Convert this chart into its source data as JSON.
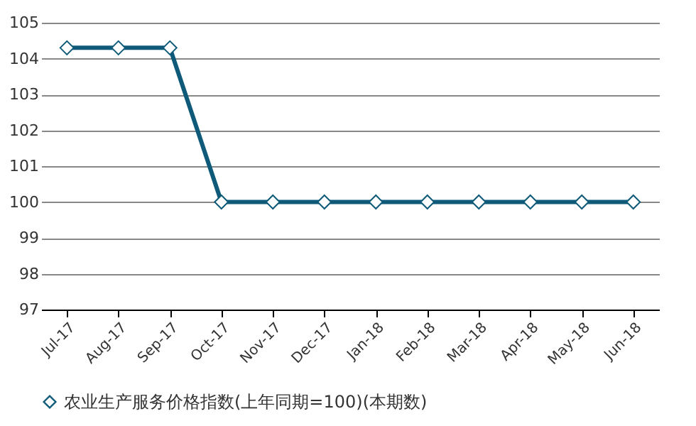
{
  "chart_data": {
    "type": "line",
    "categories": [
      "Jul-17",
      "Aug-17",
      "Sep-17",
      "Oct-17",
      "Nov-17",
      "Dec-17",
      "Jan-18",
      "Feb-18",
      "Mar-18",
      "Apr-18",
      "May-18",
      "Jun-18"
    ],
    "series": [
      {
        "name": "农业生产服务价格指数(上年同期=100)(本期数)",
        "color": "#0e5a78",
        "values": [
          104.3,
          104.3,
          104.3,
          100,
          100,
          100,
          100,
          100,
          100,
          100,
          100,
          100
        ]
      }
    ],
    "ylim": [
      97,
      105
    ],
    "yticks": [
      97,
      98,
      99,
      100,
      101,
      102,
      103,
      104,
      105
    ],
    "grid": "y",
    "legend": "bottom",
    "marker": "diamond",
    "line_style": "solid"
  }
}
